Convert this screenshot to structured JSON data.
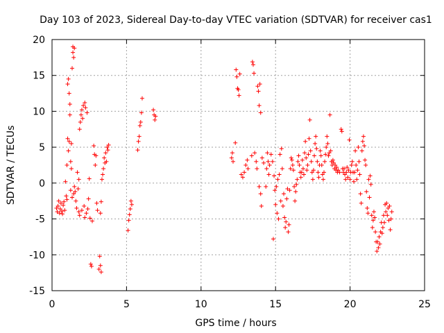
{
  "chart_data": {
    "type": "scatter",
    "title": "Day 103 of 2023, Sidereal Day-to-day VTEC variation (SDTVAR) for receiver cas1",
    "xlabel": "GPS time / hours",
    "ylabel": "SDTVAR / TECUs",
    "xlim": [
      0,
      25
    ],
    "ylim": [
      -15,
      20
    ],
    "xticks": [
      "0",
      "5",
      "10",
      "15",
      "20",
      "25"
    ],
    "yticks": [
      "-15",
      "-10",
      "-5",
      "0",
      "5",
      "10",
      "15",
      "20"
    ],
    "grid": true,
    "marker": "+",
    "marker_color": "#ff0000",
    "series": [
      {
        "name": "SDTVAR",
        "points": [
          [
            0.3,
            -3.5
          ],
          [
            0.35,
            -4.0
          ],
          [
            0.4,
            -3.2
          ],
          [
            0.45,
            -2.5
          ],
          [
            0.5,
            -4.2
          ],
          [
            0.55,
            -3.6
          ],
          [
            0.6,
            -2.8
          ],
          [
            0.65,
            -3.9
          ],
          [
            0.7,
            -4.3
          ],
          [
            0.75,
            -3.1
          ],
          [
            0.8,
            -2.6
          ],
          [
            0.85,
            -3.8
          ],
          [
            0.9,
            0.2
          ],
          [
            0.95,
            -1.8
          ],
          [
            1.0,
            -2.3
          ],
          [
            1.0,
            2.5
          ],
          [
            1.05,
            6.2
          ],
          [
            1.05,
            13.8
          ],
          [
            1.1,
            14.5
          ],
          [
            1.1,
            4.5
          ],
          [
            1.15,
            12.5
          ],
          [
            1.15,
            5.8
          ],
          [
            1.2,
            9.5
          ],
          [
            1.2,
            11.0
          ],
          [
            1.25,
            3.0
          ],
          [
            1.25,
            -1.0
          ],
          [
            1.3,
            5.5
          ],
          [
            1.3,
            2.0
          ],
          [
            1.35,
            16.0
          ],
          [
            1.35,
            -2.0
          ],
          [
            1.4,
            18.2
          ],
          [
            1.4,
            19.0
          ],
          [
            1.45,
            17.5
          ],
          [
            1.45,
            -1.5
          ],
          [
            1.5,
            18.8
          ],
          [
            1.5,
            -0.5
          ],
          [
            1.55,
            -1.2
          ],
          [
            1.6,
            -2.5
          ],
          [
            1.65,
            -3.5
          ],
          [
            1.7,
            1.5
          ],
          [
            1.75,
            -0.8
          ],
          [
            1.8,
            -4.0
          ],
          [
            1.8,
            0.5
          ],
          [
            1.85,
            7.5
          ],
          [
            1.85,
            -4.5
          ],
          [
            1.9,
            8.5
          ],
          [
            1.95,
            9.5
          ],
          [
            2.0,
            -3.8
          ],
          [
            2.0,
            10.2
          ],
          [
            2.05,
            9.0
          ],
          [
            2.1,
            10.8
          ],
          [
            2.15,
            -3.2
          ],
          [
            2.2,
            11.2
          ],
          [
            2.2,
            -4.8
          ],
          [
            2.25,
            10.5
          ],
          [
            2.3,
            -4.2
          ],
          [
            2.35,
            9.8
          ],
          [
            2.4,
            -3.6
          ],
          [
            2.45,
            -2.2
          ],
          [
            2.5,
            0.6
          ],
          [
            2.55,
            -4.9
          ],
          [
            2.6,
            -11.3
          ],
          [
            2.65,
            -11.6
          ],
          [
            2.7,
            -5.3
          ],
          [
            2.8,
            5.2
          ],
          [
            2.85,
            4.0
          ],
          [
            2.9,
            2.5
          ],
          [
            2.95,
            3.8
          ],
          [
            3.0,
            -2.8
          ],
          [
            3.05,
            -3.8
          ],
          [
            3.15,
            -12.0
          ],
          [
            3.2,
            -10.2
          ],
          [
            3.25,
            -11.5
          ],
          [
            3.3,
            -12.4
          ],
          [
            3.25,
            -4.2
          ],
          [
            3.3,
            -2.6
          ],
          [
            3.35,
            0.5
          ],
          [
            3.4,
            1.2
          ],
          [
            3.45,
            2.0
          ],
          [
            3.5,
            3.5
          ],
          [
            3.55,
            2.8
          ],
          [
            3.6,
            4.2
          ],
          [
            3.65,
            3.0
          ],
          [
            3.7,
            5.0
          ],
          [
            3.75,
            4.6
          ],
          [
            3.8,
            5.3
          ],
          [
            5.1,
            -6.6
          ],
          [
            5.15,
            -5.2
          ],
          [
            5.2,
            -4.4
          ],
          [
            5.25,
            -3.6
          ],
          [
            5.3,
            -2.5
          ],
          [
            5.35,
            -3.0
          ],
          [
            5.75,
            4.6
          ],
          [
            5.8,
            5.8
          ],
          [
            5.85,
            6.5
          ],
          [
            5.9,
            8.0
          ],
          [
            5.95,
            8.5
          ],
          [
            6.0,
            9.8
          ],
          [
            6.05,
            11.8
          ],
          [
            6.8,
            10.2
          ],
          [
            6.85,
            9.5
          ],
          [
            6.9,
            8.8
          ],
          [
            6.95,
            9.3
          ],
          [
            12.05,
            3.5
          ],
          [
            12.1,
            4.2
          ],
          [
            12.15,
            3.0
          ],
          [
            12.3,
            5.6
          ],
          [
            12.35,
            15.8
          ],
          [
            12.4,
            14.8
          ],
          [
            12.45,
            13.2
          ],
          [
            12.5,
            13.0
          ],
          [
            12.55,
            12.2
          ],
          [
            12.6,
            15.2
          ],
          [
            12.7,
            1.2
          ],
          [
            12.8,
            0.8
          ],
          [
            12.9,
            1.5
          ],
          [
            13.0,
            2.5
          ],
          [
            13.1,
            3.2
          ],
          [
            13.15,
            2.0
          ],
          [
            13.4,
            3.8
          ],
          [
            13.45,
            16.9
          ],
          [
            13.5,
            16.5
          ],
          [
            13.55,
            15.3
          ],
          [
            13.6,
            4.2
          ],
          [
            13.7,
            3.0
          ],
          [
            13.75,
            2.0
          ],
          [
            13.8,
            13.5
          ],
          [
            13.85,
            12.8
          ],
          [
            13.9,
            -0.5
          ],
          [
            13.9,
            10.8
          ],
          [
            13.95,
            13.8
          ],
          [
            14.0,
            9.8
          ],
          [
            14.0,
            -1.5
          ],
          [
            14.05,
            -3.2
          ],
          [
            14.1,
            3.5
          ],
          [
            14.2,
            2.8
          ],
          [
            14.35,
            -0.5
          ],
          [
            14.4,
            2.0
          ],
          [
            14.45,
            4.2
          ],
          [
            14.5,
            3.0
          ],
          [
            14.55,
            1.2
          ],
          [
            14.6,
            2.5
          ],
          [
            14.7,
            4.0
          ],
          [
            14.8,
            3.0
          ],
          [
            14.85,
            -7.8
          ],
          [
            14.9,
            1.0
          ],
          [
            14.95,
            -1.0
          ],
          [
            15.0,
            -3.0
          ],
          [
            15.05,
            -0.5
          ],
          [
            15.1,
            -4.2
          ],
          [
            15.15,
            0.5
          ],
          [
            15.2,
            -5.0
          ],
          [
            15.25,
            1.2
          ],
          [
            15.3,
            4.0
          ],
          [
            15.35,
            -2.5
          ],
          [
            15.4,
            4.8
          ],
          [
            15.45,
            2.0
          ],
          [
            15.5,
            -3.2
          ],
          [
            15.55,
            -1.5
          ],
          [
            15.6,
            -4.8
          ],
          [
            15.65,
            -6.2
          ],
          [
            15.7,
            -5.4
          ],
          [
            15.75,
            -2.2
          ],
          [
            15.8,
            -0.8
          ],
          [
            15.85,
            -6.8
          ],
          [
            15.9,
            -5.8
          ],
          [
            15.95,
            -1.0
          ],
          [
            16.0,
            2.0
          ],
          [
            16.05,
            3.5
          ],
          [
            16.1,
            3.2
          ],
          [
            16.15,
            2.5
          ],
          [
            16.2,
            1.8
          ],
          [
            16.25,
            -0.5
          ],
          [
            16.3,
            -2.5
          ],
          [
            16.35,
            -1.2
          ],
          [
            16.4,
            -0.2
          ],
          [
            16.45,
            0.5
          ],
          [
            16.5,
            3.0
          ],
          [
            16.55,
            3.8
          ],
          [
            16.6,
            2.5
          ],
          [
            16.65,
            1.5
          ],
          [
            16.7,
            0.8
          ],
          [
            16.75,
            1.5
          ],
          [
            16.8,
            3.2
          ],
          [
            16.85,
            2.0
          ],
          [
            16.9,
            1.2
          ],
          [
            16.95,
            4.2
          ],
          [
            17.0,
            5.8
          ],
          [
            17.05,
            3.5
          ],
          [
            17.1,
            1.8
          ],
          [
            17.15,
            2.5
          ],
          [
            17.2,
            4.0
          ],
          [
            17.25,
            6.2
          ],
          [
            17.3,
            8.8
          ],
          [
            17.35,
            4.5
          ],
          [
            17.4,
            3.0
          ],
          [
            17.45,
            1.5
          ],
          [
            17.5,
            0.5
          ],
          [
            17.55,
            1.8
          ],
          [
            17.6,
            3.8
          ],
          [
            17.65,
            5.5
          ],
          [
            17.7,
            6.5
          ],
          [
            17.75,
            4.8
          ],
          [
            17.8,
            3.0
          ],
          [
            17.85,
            1.5
          ],
          [
            17.9,
            0.8
          ],
          [
            17.95,
            2.5
          ],
          [
            18.0,
            4.5
          ],
          [
            18.05,
            3.8
          ],
          [
            18.1,
            2.5
          ],
          [
            18.15,
            1.2
          ],
          [
            18.2,
            0.5
          ],
          [
            18.25,
            1.5
          ],
          [
            18.3,
            3.0
          ],
          [
            18.35,
            4.0
          ],
          [
            18.4,
            5.0
          ],
          [
            18.45,
            6.5
          ],
          [
            18.5,
            5.5
          ],
          [
            18.55,
            3.8
          ],
          [
            18.6,
            4.2
          ],
          [
            18.65,
            9.5
          ],
          [
            18.7,
            4.5
          ],
          [
            18.75,
            3.0
          ],
          [
            18.8,
            2.5
          ],
          [
            18.85,
            3.2
          ],
          [
            18.9,
            2.8
          ],
          [
            18.95,
            2.0
          ],
          [
            19.0,
            2.5
          ],
          [
            19.05,
            1.8
          ],
          [
            19.1,
            2.2
          ],
          [
            19.15,
            1.5
          ],
          [
            19.2,
            1.8
          ],
          [
            19.3,
            1.5
          ],
          [
            19.4,
            7.5
          ],
          [
            19.45,
            7.2
          ],
          [
            19.5,
            2.0
          ],
          [
            19.55,
            1.5
          ],
          [
            19.6,
            2.0
          ],
          [
            19.65,
            1.2
          ],
          [
            19.7,
            0.5
          ],
          [
            19.75,
            1.5
          ],
          [
            19.8,
            2.2
          ],
          [
            19.85,
            0.8
          ],
          [
            19.9,
            1.8
          ],
          [
            19.95,
            6.0
          ],
          [
            20.0,
            0.5
          ],
          [
            20.05,
            1.5
          ],
          [
            20.1,
            2.5
          ],
          [
            20.15,
            3.0
          ],
          [
            20.2,
            1.5
          ],
          [
            20.25,
            0.2
          ],
          [
            20.3,
            1.5
          ],
          [
            20.35,
            4.5
          ],
          [
            20.4,
            2.5
          ],
          [
            20.45,
            0.5
          ],
          [
            20.5,
            1.8
          ],
          [
            20.55,
            5.0
          ],
          [
            20.6,
            3.0
          ],
          [
            20.65,
            1.2
          ],
          [
            20.7,
            -1.5
          ],
          [
            20.75,
            -2.8
          ],
          [
            20.8,
            4.5
          ],
          [
            20.85,
            5.8
          ],
          [
            20.9,
            6.5
          ],
          [
            20.95,
            5.2
          ],
          [
            21.0,
            3.2
          ],
          [
            21.05,
            2.5
          ],
          [
            21.1,
            -1.2
          ],
          [
            21.15,
            -3.5
          ],
          [
            21.2,
            -4.2
          ],
          [
            21.25,
            0.5
          ],
          [
            21.3,
            -2.0
          ],
          [
            21.35,
            1.0
          ],
          [
            21.4,
            -0.2
          ],
          [
            21.45,
            -4.5
          ],
          [
            21.5,
            -6.2
          ],
          [
            21.55,
            -5.2
          ],
          [
            21.6,
            -4.0
          ],
          [
            21.65,
            -4.8
          ],
          [
            21.7,
            -6.8
          ],
          [
            21.75,
            -8.2
          ],
          [
            21.8,
            -9.5
          ],
          [
            21.85,
            -8.2
          ],
          [
            21.9,
            -9.0
          ],
          [
            21.95,
            -7.5
          ],
          [
            22.0,
            -8.5
          ],
          [
            22.05,
            -6.8
          ],
          [
            22.1,
            -5.5
          ],
          [
            22.15,
            -7.0
          ],
          [
            22.2,
            -6.2
          ],
          [
            22.25,
            -4.5
          ],
          [
            22.3,
            -5.5
          ],
          [
            22.35,
            -3.0
          ],
          [
            22.4,
            -4.0
          ],
          [
            22.45,
            -2.8
          ],
          [
            22.5,
            -4.5
          ],
          [
            22.55,
            -3.5
          ],
          [
            22.6,
            -5.2
          ],
          [
            22.65,
            -3.2
          ],
          [
            22.7,
            -6.5
          ],
          [
            22.75,
            -5.0
          ],
          [
            22.8,
            -4.0
          ]
        ]
      }
    ]
  }
}
